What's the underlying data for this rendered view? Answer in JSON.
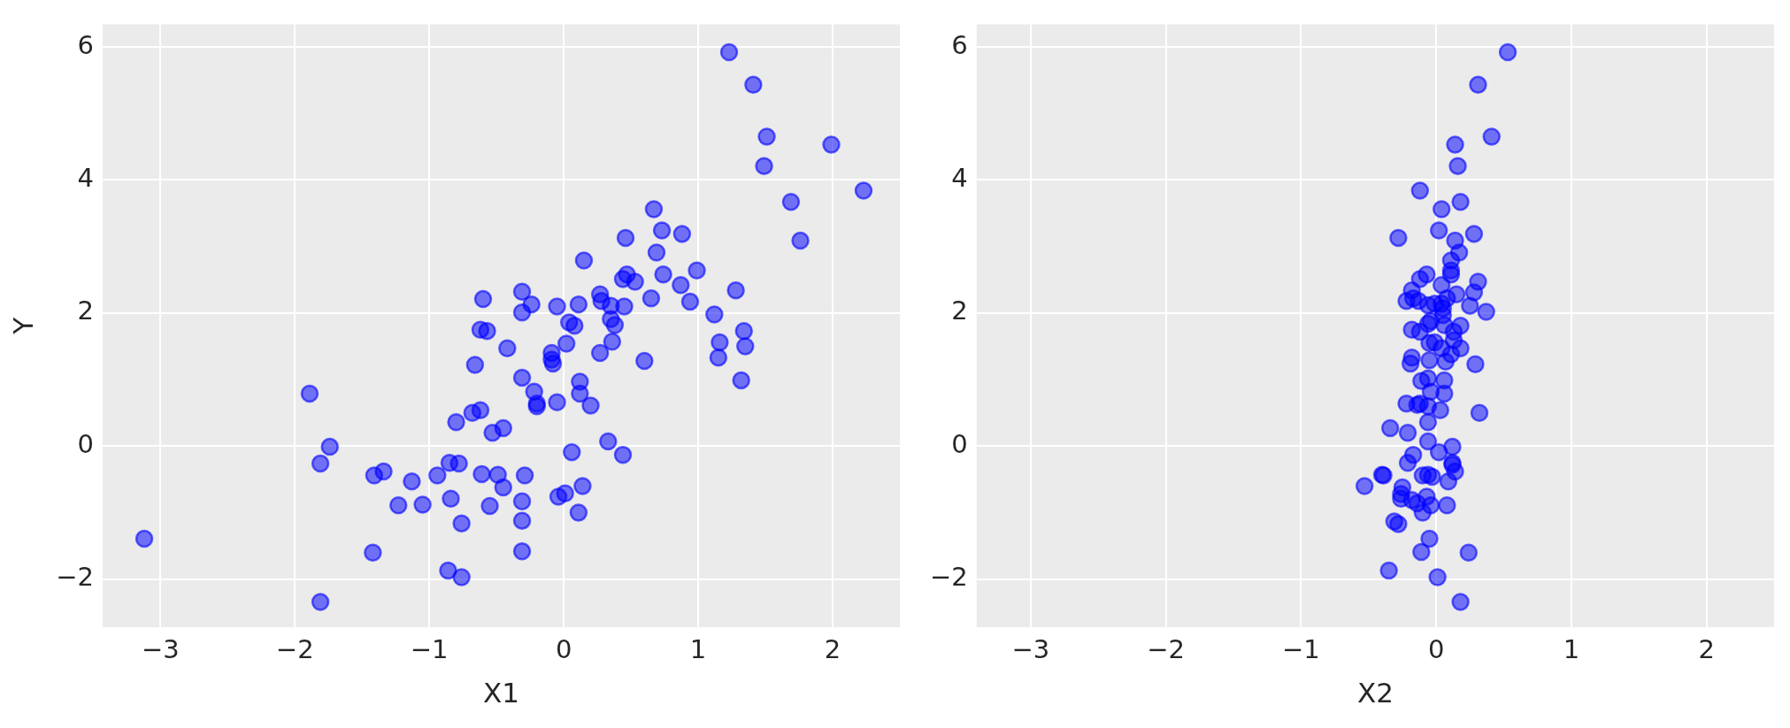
{
  "chart_data": [
    {
      "type": "scatter",
      "xlabel": "X1",
      "ylabel": "Y",
      "xlim": [
        -3.43,
        2.5
      ],
      "ylim": [
        -2.72,
        6.34
      ],
      "xticks": [
        -3,
        -2,
        -1,
        0,
        1,
        2
      ],
      "yticks": [
        -2,
        0,
        2,
        4,
        6
      ],
      "grid": true,
      "marker": "circle",
      "series": [
        {
          "color": "#0000ff",
          "x": [
            -0.6,
            -0.62,
            -0.57,
            -0.42,
            -0.66,
            -1.89,
            -0.68,
            -0.62,
            -0.8,
            -0.53,
            -0.45,
            -1.74,
            -1.81,
            -1.41,
            -1.34,
            -1.13,
            -0.94,
            -0.85,
            -0.78,
            -0.61,
            -0.49,
            -0.45,
            -1.23,
            -1.05,
            -0.84,
            -0.55,
            -0.76,
            -3.12,
            -1.42,
            -0.86,
            -0.76,
            -1.81,
            1.23,
            1.41,
            1.51,
            1.49,
            1.99,
            2.23,
            1.69,
            1.76,
            0.67,
            0.73,
            0.88,
            0.46,
            0.69,
            0.15,
            0.99,
            0.74,
            0.47,
            0.44,
            0.53,
            0.87,
            1.28,
            0.65,
            0.94,
            -0.31,
            -0.24,
            -0.31,
            -0.05,
            0.11,
            0.27,
            0.28,
            0.35,
            0.45,
            1.12,
            0.04,
            0.08,
            0.35,
            0.38,
            1.34,
            0.02,
            0.36,
            1.16,
            1.35,
            -0.09,
            -0.09,
            -0.08,
            0.27,
            1.15,
            0.6,
            1.32,
            0.12,
            0.12,
            -0.31,
            -0.22,
            -0.2,
            -0.2,
            -0.05,
            0.2,
            0.33,
            0.06,
            0.44,
            -0.29,
            0.14,
            0.01,
            -0.04,
            0.11,
            -0.31,
            -0.31,
            -0.31
          ],
          "values": [
            2.21,
            1.75,
            1.73,
            1.47,
            1.22,
            0.79,
            0.5,
            0.54,
            0.36,
            0.2,
            0.27,
            -0.01,
            -0.26,
            -0.44,
            -0.38,
            -0.53,
            -0.44,
            -0.25,
            -0.26,
            -0.42,
            -0.43,
            -0.62,
            -0.89,
            -0.88,
            -0.79,
            -0.9,
            -1.16,
            -1.39,
            -1.6,
            -1.87,
            -1.97,
            -2.34,
            5.92,
            5.43,
            4.65,
            4.21,
            4.53,
            3.84,
            3.67,
            3.09,
            3.56,
            3.24,
            3.19,
            3.13,
            2.91,
            2.79,
            2.64,
            2.58,
            2.58,
            2.51,
            2.47,
            2.42,
            2.34,
            2.22,
            2.17,
            2.32,
            2.13,
            2.01,
            2.1,
            2.13,
            2.28,
            2.18,
            2.11,
            2.1,
            1.98,
            1.86,
            1.81,
            1.91,
            1.82,
            1.73,
            1.54,
            1.57,
            1.56,
            1.5,
            1.4,
            1.3,
            1.24,
            1.4,
            1.33,
            1.28,
            0.99,
            0.97,
            0.79,
            1.03,
            0.82,
            0.64,
            0.6,
            0.66,
            0.61,
            0.07,
            -0.09,
            -0.13,
            -0.44,
            -0.6,
            -0.71,
            -0.76,
            -1.0,
            -0.83,
            -1.12,
            -1.58
          ]
        }
      ]
    },
    {
      "type": "scatter",
      "xlabel": "X2",
      "xlim": [
        -3.4,
        2.5
      ],
      "ylim": [
        -2.72,
        6.34
      ],
      "xticks": [
        -3,
        -2,
        -1,
        0,
        1,
        2
      ],
      "yticks": [
        -2,
        0,
        2,
        4,
        6
      ],
      "grid": true,
      "marker": "circle",
      "series": [
        {
          "color": "#0000ff",
          "x": [
            0.53,
            0.31,
            0.41,
            0.14,
            0.16,
            -0.12,
            0.18,
            0.04,
            0.02,
            0.28,
            -0.28,
            0.14,
            0.17,
            0.11,
            0.11,
            0.11,
            -0.07,
            -0.12,
            0.31,
            0.04,
            0.28,
            -0.18,
            0.15,
            0.08,
            -0.22,
            -0.17,
            -0.13,
            -0.06,
            -0.01,
            0.04,
            0.05,
            0.25,
            0.37,
            0.05,
            -0.04,
            -0.06,
            0.06,
            0.18,
            -0.18,
            -0.12,
            0.13,
            -0.05,
            -0.01,
            0.13,
            0.04,
            0.18,
            0.11,
            -0.18,
            -0.19,
            -0.05,
            0.07,
            0.29,
            -0.06,
            -0.11,
            0.06,
            -0.04,
            0.06,
            -0.22,
            -0.14,
            -0.12,
            -0.06,
            0.03,
            0.32,
            -0.06,
            -0.34,
            -0.21,
            -0.06,
            0.12,
            -0.17,
            0.02,
            -0.21,
            0.12,
            0.12,
            0.14,
            -0.4,
            -0.39,
            -0.1,
            -0.06,
            -0.03,
            0.09,
            -0.53,
            -0.25,
            -0.26,
            -0.26,
            -0.18,
            -0.14,
            -0.07,
            -0.04,
            0.08,
            -0.1,
            -0.31,
            -0.28,
            -0.05,
            -0.11,
            0.24,
            -0.35,
            0.01,
            0.18
          ],
          "values": [
            5.92,
            5.43,
            4.65,
            4.53,
            4.21,
            3.84,
            3.67,
            3.56,
            3.24,
            3.19,
            3.13,
            3.09,
            2.91,
            2.79,
            2.64,
            2.58,
            2.58,
            2.51,
            2.47,
            2.42,
            2.31,
            2.34,
            2.28,
            2.22,
            2.18,
            2.22,
            2.18,
            2.12,
            2.14,
            2.14,
            2.07,
            2.11,
            2.02,
            1.97,
            1.88,
            1.84,
            1.82,
            1.81,
            1.75,
            1.72,
            1.72,
            1.55,
            1.56,
            1.59,
            1.47,
            1.47,
            1.38,
            1.33,
            1.24,
            1.29,
            1.27,
            1.23,
            1.02,
            0.98,
            0.99,
            0.82,
            0.79,
            0.64,
            0.62,
            0.64,
            0.6,
            0.54,
            0.5,
            0.36,
            0.27,
            0.2,
            0.07,
            -0.01,
            -0.13,
            -0.09,
            -0.25,
            -0.25,
            -0.28,
            -0.38,
            -0.43,
            -0.44,
            -0.44,
            -0.43,
            -0.46,
            -0.53,
            -0.6,
            -0.62,
            -0.72,
            -0.79,
            -0.81,
            -0.86,
            -0.76,
            -0.89,
            -0.89,
            -1.0,
            -1.13,
            -1.17,
            -1.39,
            -1.59,
            -1.6,
            -1.87,
            -1.97,
            -2.34
          ]
        }
      ]
    }
  ]
}
